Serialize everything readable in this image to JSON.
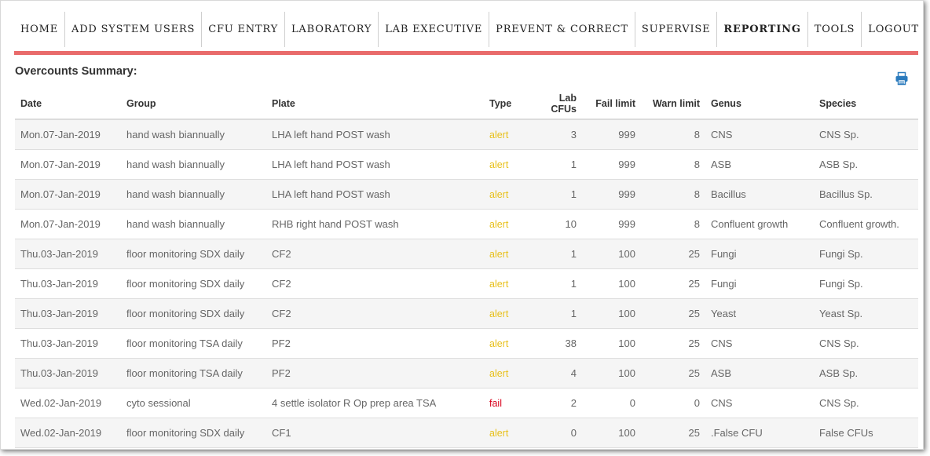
{
  "nav": {
    "items": [
      {
        "label": "HOME",
        "active": false
      },
      {
        "label": "ADD SYSTEM USERS",
        "active": false
      },
      {
        "label": "CFU ENTRY",
        "active": false
      },
      {
        "label": "LABORATORY",
        "active": false
      },
      {
        "label": "LAB EXECUTIVE",
        "active": false
      },
      {
        "label": "PREVENT & CORRECT",
        "active": false
      },
      {
        "label": "SUPERVISE",
        "active": false
      },
      {
        "label": "REPORTING",
        "active": true
      },
      {
        "label": "TOOLS",
        "active": false
      },
      {
        "label": "LOGOUT",
        "active": false
      }
    ],
    "accent_color": "#e96b6b"
  },
  "page": {
    "title": "Overcounts Summary:",
    "print_icon": "print-icon"
  },
  "table": {
    "headers": {
      "date": "Date",
      "group": "Group",
      "plate": "Plate",
      "type": "Type",
      "lab_cfus": "Lab CFUs",
      "fail_limit": "Fail limit",
      "warn_limit": "Warn limit",
      "genus": "Genus",
      "species": "Species"
    },
    "rows": [
      {
        "date": "Mon.07-Jan-2019",
        "group": "hand wash biannually",
        "plate": "LHA left hand POST wash",
        "type": "alert",
        "lab_cfus": "3",
        "fail_limit": "999",
        "warn_limit": "8",
        "genus": "CNS",
        "species": "CNS Sp."
      },
      {
        "date": "Mon.07-Jan-2019",
        "group": "hand wash biannually",
        "plate": "LHA left hand POST wash",
        "type": "alert",
        "lab_cfus": "1",
        "fail_limit": "999",
        "warn_limit": "8",
        "genus": "ASB",
        "species": "ASB Sp."
      },
      {
        "date": "Mon.07-Jan-2019",
        "group": "hand wash biannually",
        "plate": "LHA left hand POST wash",
        "type": "alert",
        "lab_cfus": "1",
        "fail_limit": "999",
        "warn_limit": "8",
        "genus": "Bacillus",
        "species": "Bacillus Sp."
      },
      {
        "date": "Mon.07-Jan-2019",
        "group": "hand wash biannually",
        "plate": "RHB right hand POST wash",
        "type": "alert",
        "lab_cfus": "10",
        "fail_limit": "999",
        "warn_limit": "8",
        "genus": "Confluent growth",
        "species": "Confluent growth."
      },
      {
        "date": "Thu.03-Jan-2019",
        "group": "floor monitoring SDX daily",
        "plate": "CF2",
        "type": "alert",
        "lab_cfus": "1",
        "fail_limit": "100",
        "warn_limit": "25",
        "genus": "Fungi",
        "species": "Fungi Sp."
      },
      {
        "date": "Thu.03-Jan-2019",
        "group": "floor monitoring SDX daily",
        "plate": "CF2",
        "type": "alert",
        "lab_cfus": "1",
        "fail_limit": "100",
        "warn_limit": "25",
        "genus": "Fungi",
        "species": "Fungi Sp."
      },
      {
        "date": "Thu.03-Jan-2019",
        "group": "floor monitoring SDX daily",
        "plate": "CF2",
        "type": "alert",
        "lab_cfus": "1",
        "fail_limit": "100",
        "warn_limit": "25",
        "genus": "Yeast",
        "species": "Yeast Sp."
      },
      {
        "date": "Thu.03-Jan-2019",
        "group": "floor monitoring TSA daily",
        "plate": "PF2",
        "type": "alert",
        "lab_cfus": "38",
        "fail_limit": "100",
        "warn_limit": "25",
        "genus": "CNS",
        "species": "CNS Sp."
      },
      {
        "date": "Thu.03-Jan-2019",
        "group": "floor monitoring TSA daily",
        "plate": "PF2",
        "type": "alert",
        "lab_cfus": "4",
        "fail_limit": "100",
        "warn_limit": "25",
        "genus": "ASB",
        "species": "ASB Sp."
      },
      {
        "date": "Wed.02-Jan-2019",
        "group": "cyto sessional",
        "plate": "4 settle isolator R Op prep area TSA",
        "type": "fail",
        "lab_cfus": "2",
        "fail_limit": "0",
        "warn_limit": "0",
        "genus": "CNS",
        "species": "CNS Sp."
      },
      {
        "date": "Wed.02-Jan-2019",
        "group": "floor monitoring SDX daily",
        "plate": "CF1",
        "type": "alert",
        "lab_cfus": "0",
        "fail_limit": "100",
        "warn_limit": "25",
        "genus": ".False CFU",
        "species": "False CFUs"
      }
    ],
    "colors": {
      "alert": "#e8c01a",
      "fail": "#d9001b"
    }
  }
}
